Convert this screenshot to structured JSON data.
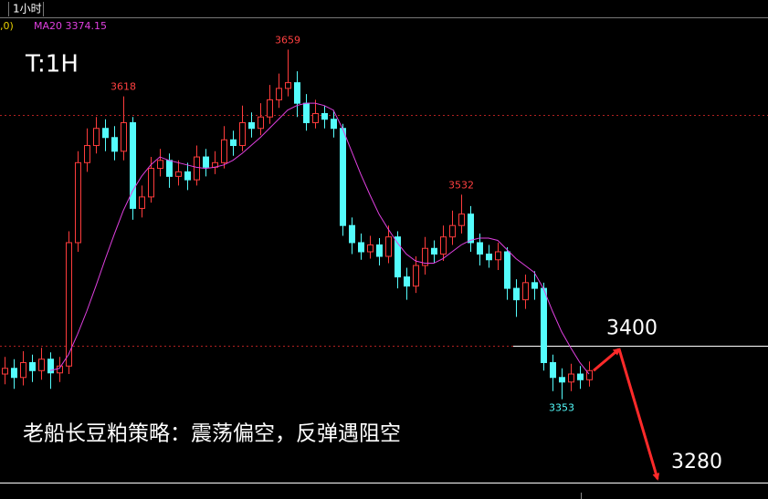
{
  "header": {
    "period": "1小时",
    "indicator_prefix": ",0)",
    "indicator_label": "MA20 3374.15"
  },
  "chart_data": {
    "type": "candlestick",
    "title": "T:1H",
    "annotation": "老船长豆粕策略：震荡偏空，反弹遇阻空",
    "ylim": [
      3280,
      3688
    ],
    "up_color": "#ff3c3c",
    "down_color": "#54fcfc",
    "open": [
      3375,
      3380,
      3372,
      3385,
      3378,
      3388,
      3376,
      3382,
      3490,
      3560,
      3575,
      3590,
      3582,
      3570,
      3595,
      3520,
      3530,
      3555,
      3562,
      3548,
      3552,
      3545,
      3565,
      3556,
      3560,
      3580,
      3575,
      3595,
      3590,
      3600,
      3615,
      3625,
      3630,
      3612,
      3595,
      3603,
      3598,
      3590,
      3505,
      3490,
      3482,
      3488,
      3478,
      3495,
      3460,
      3452,
      3470,
      3485,
      3480,
      3495,
      3505,
      3515,
      3490,
      3480,
      3475,
      3482,
      3450,
      3440,
      3455,
      3450,
      3385,
      3372,
      3368,
      3375,
      3370
    ],
    "high": [
      3390,
      3388,
      3395,
      3392,
      3398,
      3394,
      3390,
      3500,
      3570,
      3590,
      3600,
      3598,
      3592,
      3618,
      3600,
      3540,
      3565,
      3572,
      3568,
      3562,
      3560,
      3575,
      3572,
      3570,
      3592,
      3588,
      3610,
      3604,
      3612,
      3628,
      3638,
      3659,
      3640,
      3620,
      3615,
      3610,
      3606,
      3594,
      3512,
      3498,
      3496,
      3494,
      3505,
      3500,
      3468,
      3478,
      3495,
      3492,
      3505,
      3518,
      3532,
      3522,
      3498,
      3488,
      3490,
      3486,
      3458,
      3462,
      3465,
      3455,
      3392,
      3380,
      3384,
      3382,
      3386
    ],
    "low": [
      3366,
      3362,
      3365,
      3368,
      3370,
      3362,
      3368,
      3375,
      3482,
      3552,
      3568,
      3570,
      3562,
      3562,
      3510,
      3512,
      3525,
      3548,
      3538,
      3540,
      3536,
      3540,
      3548,
      3550,
      3555,
      3566,
      3570,
      3582,
      3584,
      3594,
      3608,
      3618,
      3600,
      3588,
      3590,
      3590,
      3582,
      3496,
      3480,
      3475,
      3476,
      3470,
      3472,
      3450,
      3440,
      3446,
      3462,
      3472,
      3474,
      3488,
      3498,
      3482,
      3470,
      3468,
      3466,
      3440,
      3425,
      3432,
      3440,
      3378,
      3360,
      3353,
      3360,
      3362,
      3364
    ],
    "close": [
      3380,
      3372,
      3385,
      3378,
      3388,
      3376,
      3382,
      3490,
      3560,
      3575,
      3590,
      3582,
      3570,
      3595,
      3520,
      3530,
      3555,
      3562,
      3548,
      3552,
      3545,
      3565,
      3556,
      3560,
      3580,
      3575,
      3595,
      3590,
      3600,
      3615,
      3625,
      3630,
      3612,
      3595,
      3603,
      3598,
      3590,
      3505,
      3490,
      3482,
      3488,
      3478,
      3495,
      3460,
      3452,
      3470,
      3485,
      3480,
      3495,
      3505,
      3515,
      3490,
      3480,
      3475,
      3482,
      3450,
      3440,
      3455,
      3450,
      3385,
      3372,
      3368,
      3375,
      3370,
      3378
    ],
    "ma20": {
      "name": "MA20",
      "color": "#e040e0",
      "values": [
        null,
        null,
        null,
        null,
        null,
        3378,
        3380,
        3392,
        3410,
        3430,
        3452,
        3475,
        3497,
        3518,
        3535,
        3548,
        3558,
        3565,
        3562,
        3560,
        3558,
        3556,
        3555,
        3556,
        3558,
        3562,
        3568,
        3575,
        3582,
        3590,
        3598,
        3606,
        3610,
        3612,
        3612,
        3610,
        3606,
        3590,
        3570,
        3550,
        3532,
        3515,
        3502,
        3490,
        3480,
        3474,
        3472,
        3472,
        3476,
        3482,
        3488,
        3492,
        3494,
        3494,
        3492,
        3484,
        3476,
        3470,
        3464,
        3450,
        3430,
        3412,
        3398,
        3385,
        3375
      ]
    },
    "extreme_labels": [
      3618,
      3659,
      3532,
      3353
    ],
    "dashed_levels": [
      3602,
      3400
    ],
    "target_levels": [
      3400,
      3280
    ]
  }
}
